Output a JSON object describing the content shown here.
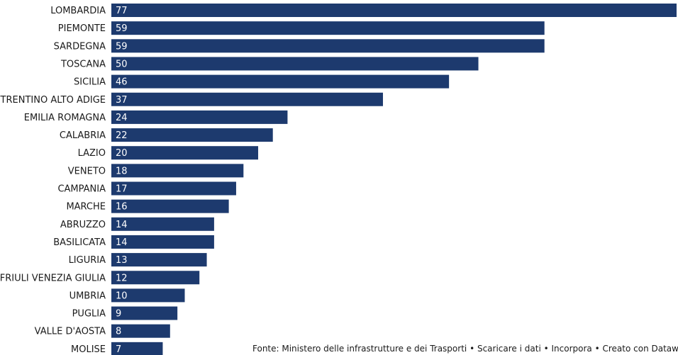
{
  "chart_data": {
    "type": "bar",
    "orientation": "horizontal",
    "categories": [
      "LOMBARDIA",
      "PIEMONTE",
      "SARDEGNA",
      "TOSCANA",
      "SICILIA",
      "TRENTINO ALTO ADIGE",
      "EMILIA ROMAGNA",
      "CALABRIA",
      "LAZIO",
      "VENETO",
      "CAMPANIA",
      "MARCHE",
      "ABRUZZO",
      "BASILICATA",
      "LIGURIA",
      "FRIULI VENEZIA GIULIA",
      "UMBRIA",
      "PUGLIA",
      "VALLE D'AOSTA",
      "MOLISE"
    ],
    "values": [
      77,
      59,
      59,
      50,
      46,
      37,
      24,
      22,
      20,
      18,
      17,
      16,
      14,
      14,
      13,
      12,
      10,
      9,
      8,
      7
    ],
    "xlim": [
      0,
      77
    ],
    "bar_color": "#1d3a6e",
    "grid": false,
    "legend": "none",
    "data_labels": true
  },
  "footer": {
    "prefix": "Fonte: Ministero delle infrastrutture e dei Trasporti",
    "separator": " • ",
    "download_label": "Scaricare i dati",
    "embed_label": "Incorpora",
    "credit_label": "Creato con Datawrapper"
  }
}
